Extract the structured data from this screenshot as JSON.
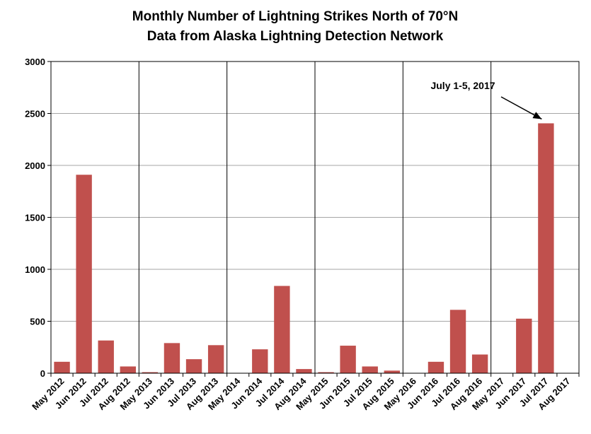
{
  "chart_data": {
    "type": "bar",
    "title_line1": "Monthly Number of Lightning Strikes North of 70°N",
    "title_line2": "Data from Alaska Lightning Detection Network",
    "xlabel": "",
    "ylabel": "",
    "ylim": [
      0,
      3000
    ],
    "yticks": [
      0,
      500,
      1000,
      1500,
      2000,
      2500,
      3000
    ],
    "grid": true,
    "legend": "none",
    "bar_color": "#C0504D",
    "categories": [
      "May 2012",
      "Jun 2012",
      "Jul 2012",
      "Aug 2012",
      "May 2013",
      "Jun 2013",
      "Jul 2013",
      "Aug 2013",
      "May 2014",
      "Jun 2014",
      "Jul 2014",
      "Aug 2014",
      "May 2015",
      "Jun 2015",
      "Jul 2015",
      "Aug 2015",
      "May 2016",
      "Jun 2016",
      "Jul 2016",
      "Aug 2016",
      "May 2017",
      "Jun 2017",
      "Jul 2017",
      "Aug 2017"
    ],
    "values": [
      110,
      1910,
      315,
      65,
      10,
      290,
      135,
      270,
      0,
      230,
      840,
      40,
      10,
      265,
      65,
      25,
      0,
      110,
      610,
      180,
      0,
      525,
      2405,
      0
    ],
    "annotation": {
      "text": "July 1-5, 2017",
      "target_category": "Jul 2017"
    }
  }
}
